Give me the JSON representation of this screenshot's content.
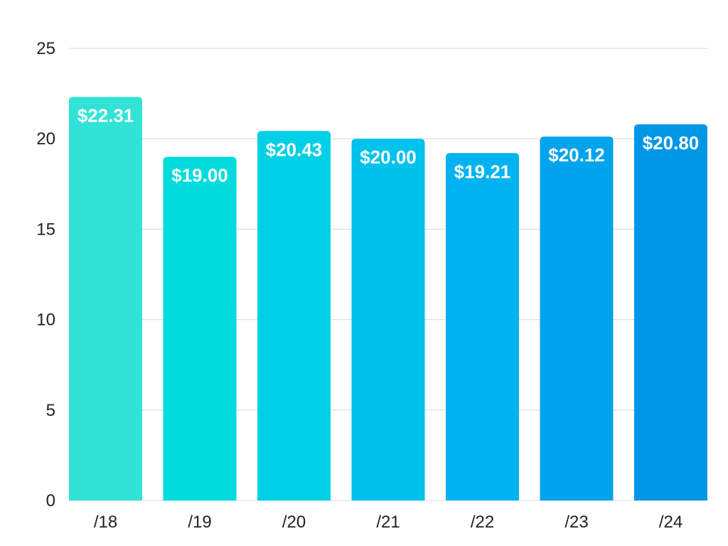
{
  "chart_data": {
    "type": "bar",
    "title": "",
    "xlabel": "",
    "ylabel": "",
    "categories": [
      "/18",
      "/19",
      "/20",
      "/21",
      "/22",
      "/23",
      "/24"
    ],
    "values": [
      22.31,
      19.0,
      20.43,
      20.0,
      19.21,
      20.12,
      20.8
    ],
    "value_labels": [
      "$22.31",
      "$19.00",
      "$20.43",
      "$20.00",
      "$19.21",
      "$20.12",
      "$20.80"
    ],
    "ylim": [
      0,
      25
    ],
    "yticks": [
      0,
      5,
      10,
      15,
      20,
      25
    ],
    "grid": true,
    "colors": [
      "#30e3d6",
      "#00dcdc",
      "#00d0e6",
      "#00c2ec",
      "#00b3f0",
      "#00a3ec",
      "#0096e6"
    ]
  }
}
